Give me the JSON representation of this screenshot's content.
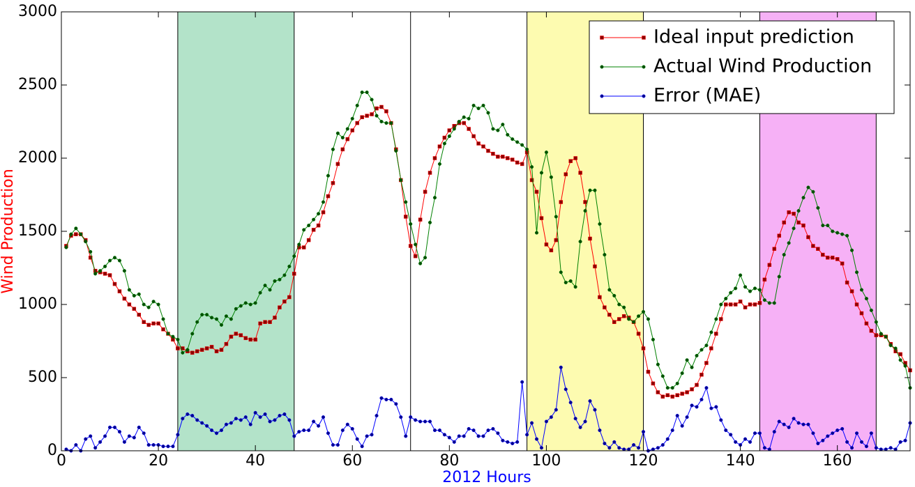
{
  "chart_data": {
    "type": "line",
    "xlabel": "2012 Hours",
    "ylabel": "Wind Production",
    "xlabel_color": "#0000ff",
    "ylabel_color": "#ff0000",
    "xlim": [
      0,
      175
    ],
    "ylim": [
      0,
      3000
    ],
    "xticks": [
      0,
      20,
      40,
      60,
      80,
      100,
      120,
      140,
      160
    ],
    "yticks": [
      0,
      500,
      1000,
      1500,
      2000,
      2500,
      3000
    ],
    "legend": "upper right",
    "shaded_regions": [
      {
        "xlim": [
          24,
          48
        ],
        "color": "#b3e3c9"
      },
      {
        "xlim": [
          96,
          120
        ],
        "color": "#fdfbb0"
      },
      {
        "xlim": [
          144,
          168
        ],
        "color": "#f6b1f6"
      }
    ],
    "vlines": [
      24,
      48,
      72,
      96,
      120,
      144,
      168
    ],
    "x": [
      1,
      2,
      3,
      4,
      5,
      6,
      7,
      8,
      9,
      10,
      11,
      12,
      13,
      14,
      15,
      16,
      17,
      18,
      19,
      20,
      21,
      22,
      23,
      24,
      25,
      26,
      27,
      28,
      29,
      30,
      31,
      32,
      33,
      34,
      35,
      36,
      37,
      38,
      39,
      40,
      41,
      42,
      43,
      44,
      45,
      46,
      47,
      48,
      49,
      50,
      51,
      52,
      53,
      54,
      55,
      56,
      57,
      58,
      59,
      60,
      61,
      62,
      63,
      64,
      65,
      66,
      67,
      68,
      69,
      70,
      71,
      72,
      73,
      74,
      75,
      76,
      77,
      78,
      79,
      80,
      81,
      82,
      83,
      84,
      85,
      86,
      87,
      88,
      89,
      90,
      91,
      92,
      93,
      94,
      95,
      96,
      97,
      98,
      99,
      100,
      101,
      102,
      103,
      104,
      105,
      106,
      107,
      108,
      109,
      110,
      111,
      112,
      113,
      114,
      115,
      116,
      117,
      118,
      119,
      120,
      121,
      122,
      123,
      124,
      125,
      126,
      127,
      128,
      129,
      130,
      131,
      132,
      133,
      134,
      135,
      136,
      137,
      138,
      139,
      140,
      141,
      142,
      143,
      144,
      145,
      146,
      147,
      148,
      149,
      150,
      151,
      152,
      153,
      154,
      155,
      156,
      157,
      158,
      159,
      160,
      161,
      162,
      163,
      164,
      165,
      166,
      167,
      168,
      169,
      170,
      171,
      172,
      173,
      174,
      175
    ],
    "series": [
      {
        "name": "Ideal input prediction",
        "color": "#ff0000",
        "marker": "square",
        "marker_color": "#8b0000",
        "values": [
          1400,
          1470,
          1480,
          1480,
          1440,
          1320,
          1230,
          1220,
          1210,
          1200,
          1140,
          1090,
          1040,
          1000,
          970,
          930,
          880,
          860,
          870,
          870,
          830,
          800,
          760,
          700,
          700,
          680,
          670,
          680,
          690,
          700,
          710,
          680,
          690,
          730,
          780,
          800,
          790,
          770,
          760,
          760,
          870,
          880,
          880,
          910,
          980,
          1020,
          1050,
          1210,
          1390,
          1390,
          1440,
          1510,
          1540,
          1630,
          1740,
          1830,
          1960,
          2060,
          2130,
          2190,
          2240,
          2280,
          2290,
          2300,
          2340,
          2350,
          2320,
          2240,
          2060,
          1850,
          1600,
          1400,
          1330,
          1580,
          1770,
          1900,
          2000,
          2080,
          2140,
          2190,
          2220,
          2240,
          2240,
          2200,
          2150,
          2100,
          2080,
          2050,
          2030,
          2010,
          2010,
          2000,
          1990,
          1970,
          1960,
          2040,
          1850,
          1770,
          1590,
          1410,
          1370,
          1440,
          1700,
          1890,
          1980,
          2000,
          1900,
          1700,
          1450,
          1260,
          1050,
          980,
          930,
          880,
          900,
          920,
          910,
          880,
          800,
          700,
          540,
          460,
          400,
          370,
          380,
          370,
          380,
          390,
          400,
          420,
          450,
          520,
          600,
          700,
          800,
          900,
          1000,
          1000,
          1000,
          1020,
          980,
          1000,
          1000,
          1010,
          1170,
          1270,
          1380,
          1470,
          1560,
          1630,
          1620,
          1560,
          1540,
          1460,
          1400,
          1380,
          1340,
          1320,
          1320,
          1310,
          1280,
          1150,
          1090,
          1000,
          940,
          870,
          820,
          790,
          790,
          780,
          730,
          680,
          660,
          600,
          550
        ]
      },
      {
        "name": "Actual Wind Production",
        "color": "#008000",
        "marker": "circle",
        "marker_color": "#004d00",
        "values": [
          1390,
          1480,
          1520,
          1480,
          1430,
          1360,
          1210,
          1230,
          1260,
          1300,
          1320,
          1300,
          1230,
          1100,
          1060,
          1070,
          1000,
          980,
          1020,
          1000,
          900,
          800,
          780,
          760,
          670,
          690,
          800,
          880,
          930,
          930,
          910,
          900,
          860,
          920,
          900,
          970,
          990,
          1010,
          1000,
          1010,
          1080,
          1130,
          1100,
          1160,
          1170,
          1200,
          1260,
          1330,
          1410,
          1510,
          1540,
          1580,
          1620,
          1700,
          1880,
          2060,
          2170,
          2140,
          2200,
          2270,
          2360,
          2450,
          2450,
          2400,
          2290,
          2250,
          2240,
          2240,
          2050,
          1850,
          1700,
          1550,
          1410,
          1280,
          1320,
          1560,
          1730,
          1960,
          2100,
          2150,
          2200,
          2250,
          2280,
          2270,
          2360,
          2340,
          2360,
          2310,
          2200,
          2190,
          2230,
          2160,
          2130,
          2110,
          2090,
          2060,
          1940,
          1490,
          1900,
          2040,
          1870,
          1600,
          1220,
          1150,
          1160,
          1120,
          1430,
          1640,
          1780,
          1780,
          1550,
          1340,
          1100,
          1060,
          1000,
          980,
          900,
          880,
          920,
          950,
          900,
          760,
          590,
          510,
          430,
          430,
          460,
          530,
          620,
          570,
          650,
          690,
          720,
          810,
          900,
          1000,
          1040,
          1080,
          1110,
          1200,
          1120,
          1090,
          1110,
          1100,
          1030,
          1010,
          1010,
          1190,
          1340,
          1420,
          1520,
          1640,
          1730,
          1800,
          1770,
          1660,
          1540,
          1540,
          1500,
          1490,
          1480,
          1470,
          1370,
          1220,
          1100,
          1040,
          960,
          880,
          800,
          780,
          720,
          700,
          620,
          580,
          430
        ]
      },
      {
        "name": "Error (MAE)",
        "color": "#0000ff",
        "marker": "circle",
        "marker_color": "#00008b",
        "values": [
          10,
          0,
          40,
          0,
          80,
          100,
          20,
          60,
          100,
          160,
          160,
          130,
          60,
          100,
          90,
          160,
          120,
          40,
          40,
          40,
          30,
          30,
          30,
          110,
          220,
          250,
          240,
          210,
          190,
          170,
          140,
          120,
          140,
          180,
          190,
          220,
          210,
          230,
          180,
          260,
          230,
          250,
          200,
          210,
          240,
          250,
          210,
          100,
          130,
          140,
          140,
          200,
          170,
          230,
          120,
          40,
          40,
          140,
          180,
          150,
          80,
          30,
          100,
          110,
          240,
          360,
          350,
          350,
          320,
          230,
          100,
          230,
          210,
          200,
          200,
          200,
          140,
          140,
          110,
          90,
          60,
          100,
          100,
          150,
          140,
          100,
          100,
          140,
          150,
          120,
          70,
          60,
          50,
          60,
          470,
          110,
          190,
          80,
          20,
          200,
          230,
          280,
          570,
          420,
          330,
          220,
          160,
          200,
          340,
          280,
          140,
          50,
          20,
          60,
          20,
          10,
          10,
          40,
          20,
          130,
          0,
          10,
          20,
          40,
          80,
          140,
          240,
          170,
          230,
          310,
          300,
          350,
          430,
          290,
          300,
          210,
          140,
          110,
          60,
          40,
          80,
          60,
          120,
          120,
          20,
          10,
          130,
          200,
          180,
          160,
          220,
          190,
          180,
          180,
          120,
          50,
          70,
          100,
          120,
          140,
          150,
          60,
          20,
          120,
          60,
          30,
          120,
          20,
          10,
          10,
          20,
          10,
          60,
          70,
          190
        ]
      }
    ]
  }
}
